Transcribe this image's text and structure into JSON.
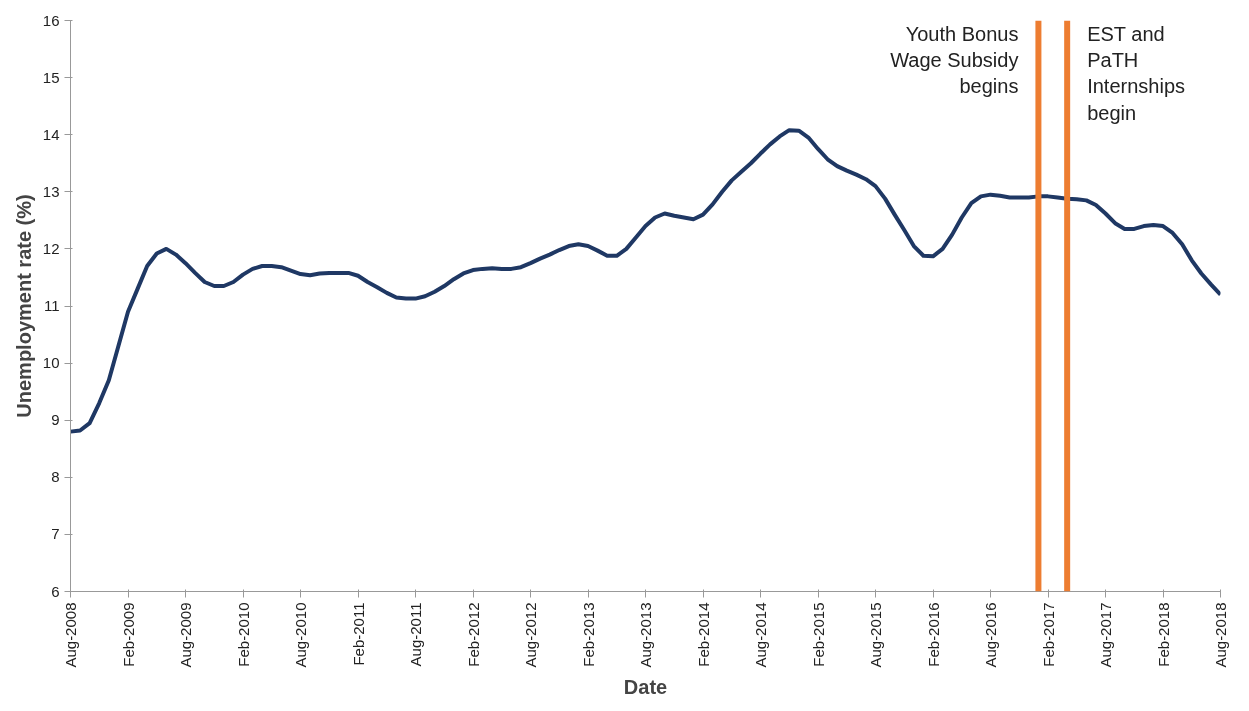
{
  "chart_data": {
    "type": "line",
    "xlabel": "Date",
    "ylabel": "Unemployment rate (%)",
    "x": [
      "2008-08",
      "2008-09",
      "2008-10",
      "2008-11",
      "2008-12",
      "2009-01",
      "2009-02",
      "2009-03",
      "2009-04",
      "2009-05",
      "2009-06",
      "2009-07",
      "2009-08",
      "2009-09",
      "2009-10",
      "2009-11",
      "2009-12",
      "2010-01",
      "2010-02",
      "2010-03",
      "2010-04",
      "2010-05",
      "2010-06",
      "2010-07",
      "2010-08",
      "2010-09",
      "2010-10",
      "2010-11",
      "2010-12",
      "2011-01",
      "2011-02",
      "2011-03",
      "2011-04",
      "2011-05",
      "2011-06",
      "2011-07",
      "2011-08",
      "2011-09",
      "2011-10",
      "2011-11",
      "2011-12",
      "2012-01",
      "2012-02",
      "2012-03",
      "2012-04",
      "2012-05",
      "2012-06",
      "2012-07",
      "2012-08",
      "2012-09",
      "2012-10",
      "2012-11",
      "2012-12",
      "2013-01",
      "2013-02",
      "2013-03",
      "2013-04",
      "2013-05",
      "2013-06",
      "2013-07",
      "2013-08",
      "2013-09",
      "2013-10",
      "2013-11",
      "2013-12",
      "2014-01",
      "2014-02",
      "2014-03",
      "2014-04",
      "2014-05",
      "2014-06",
      "2014-07",
      "2014-08",
      "2014-09",
      "2014-10",
      "2014-11",
      "2014-12",
      "2015-01",
      "2015-02",
      "2015-03",
      "2015-04",
      "2015-05",
      "2015-06",
      "2015-07",
      "2015-08",
      "2015-09",
      "2015-10",
      "2015-11",
      "2015-12",
      "2016-01",
      "2016-02",
      "2016-03",
      "2016-04",
      "2016-05",
      "2016-06",
      "2016-07",
      "2016-08",
      "2016-09",
      "2016-10",
      "2016-11",
      "2016-12",
      "2017-01",
      "2017-02",
      "2017-03",
      "2017-04",
      "2017-05",
      "2017-06",
      "2017-07",
      "2017-08",
      "2017-09",
      "2017-10",
      "2017-11",
      "2017-12",
      "2018-01",
      "2018-02",
      "2018-03",
      "2018-04",
      "2018-05",
      "2018-06",
      "2018-07",
      "2018-08"
    ],
    "series": [
      {
        "color": "#1f3864",
        "values": [
          8.8,
          8.82,
          8.95,
          9.3,
          9.7,
          10.3,
          10.9,
          11.3,
          11.7,
          11.92,
          12.0,
          11.9,
          11.75,
          11.58,
          11.42,
          11.35,
          11.35,
          11.42,
          11.55,
          11.65,
          11.7,
          11.7,
          11.68,
          11.62,
          11.56,
          11.54,
          11.57,
          11.58,
          11.58,
          11.58,
          11.53,
          11.42,
          11.33,
          11.23,
          11.15,
          11.13,
          11.13,
          11.17,
          11.25,
          11.35,
          11.47,
          11.57,
          11.63,
          11.65,
          11.66,
          11.65,
          11.65,
          11.68,
          11.75,
          11.83,
          11.9,
          11.98,
          12.05,
          12.08,
          12.05,
          11.97,
          11.88,
          11.88,
          12.0,
          12.2,
          12.4,
          12.55,
          12.62,
          12.58,
          12.55,
          12.52,
          12.6,
          12.78,
          13.0,
          13.2,
          13.35,
          13.5,
          13.67,
          13.83,
          13.97,
          14.08,
          14.07,
          13.95,
          13.75,
          13.57,
          13.45,
          13.37,
          13.3,
          13.22,
          13.1,
          12.88,
          12.6,
          12.33,
          12.05,
          11.88,
          11.87,
          12.0,
          12.25,
          12.55,
          12.8,
          12.92,
          12.95,
          12.93,
          12.9,
          12.9,
          12.9,
          12.92,
          12.92,
          12.9,
          12.88,
          12.87,
          12.85,
          12.77,
          12.62,
          12.45,
          12.35,
          12.35,
          12.4,
          12.42,
          12.4,
          12.28,
          12.08,
          11.8,
          11.57,
          11.38,
          11.2
        ]
      }
    ],
    "xlim": [
      "2008-08",
      "2018-08"
    ],
    "xticks": [
      {
        "value": "2008-08",
        "label": "Aug-2008"
      },
      {
        "value": "2009-02",
        "label": "Feb-2009"
      },
      {
        "value": "2009-08",
        "label": "Aug-2009"
      },
      {
        "value": "2010-02",
        "label": "Feb-2010"
      },
      {
        "value": "2010-08",
        "label": "Aug-2010"
      },
      {
        "value": "2011-02",
        "label": "Feb-2011"
      },
      {
        "value": "2011-08",
        "label": "Aug-2011"
      },
      {
        "value": "2012-02",
        "label": "Feb-2012"
      },
      {
        "value": "2012-08",
        "label": "Aug-2012"
      },
      {
        "value": "2013-02",
        "label": "Feb-2013"
      },
      {
        "value": "2013-08",
        "label": "Aug-2013"
      },
      {
        "value": "2014-02",
        "label": "Feb-2014"
      },
      {
        "value": "2014-08",
        "label": "Aug-2014"
      },
      {
        "value": "2015-02",
        "label": "Feb-2015"
      },
      {
        "value": "2015-08",
        "label": "Aug-2015"
      },
      {
        "value": "2016-02",
        "label": "Feb-2016"
      },
      {
        "value": "2016-08",
        "label": "Aug-2016"
      },
      {
        "value": "2017-02",
        "label": "Feb-2017"
      },
      {
        "value": "2017-08",
        "label": "Aug-2017"
      },
      {
        "value": "2018-02",
        "label": "Feb-2018"
      },
      {
        "value": "2018-08",
        "label": "Aug-2018"
      }
    ],
    "ylim": [
      6,
      16
    ],
    "yticks": [
      6,
      7,
      8,
      9,
      10,
      11,
      12,
      13,
      14,
      15,
      16
    ],
    "grid": false,
    "marker": "none",
    "line_style": "solid",
    "ref_lines": [
      {
        "axis": "x",
        "value": "2017-01",
        "label": "Youth Bonus\nWage Subsidy\nbegins",
        "color": "#ed7d31"
      },
      {
        "axis": "x",
        "value": "2017-04",
        "label": "EST and\nPaTH\nInternships\nbegin",
        "color": "#ed7d31"
      }
    ]
  }
}
